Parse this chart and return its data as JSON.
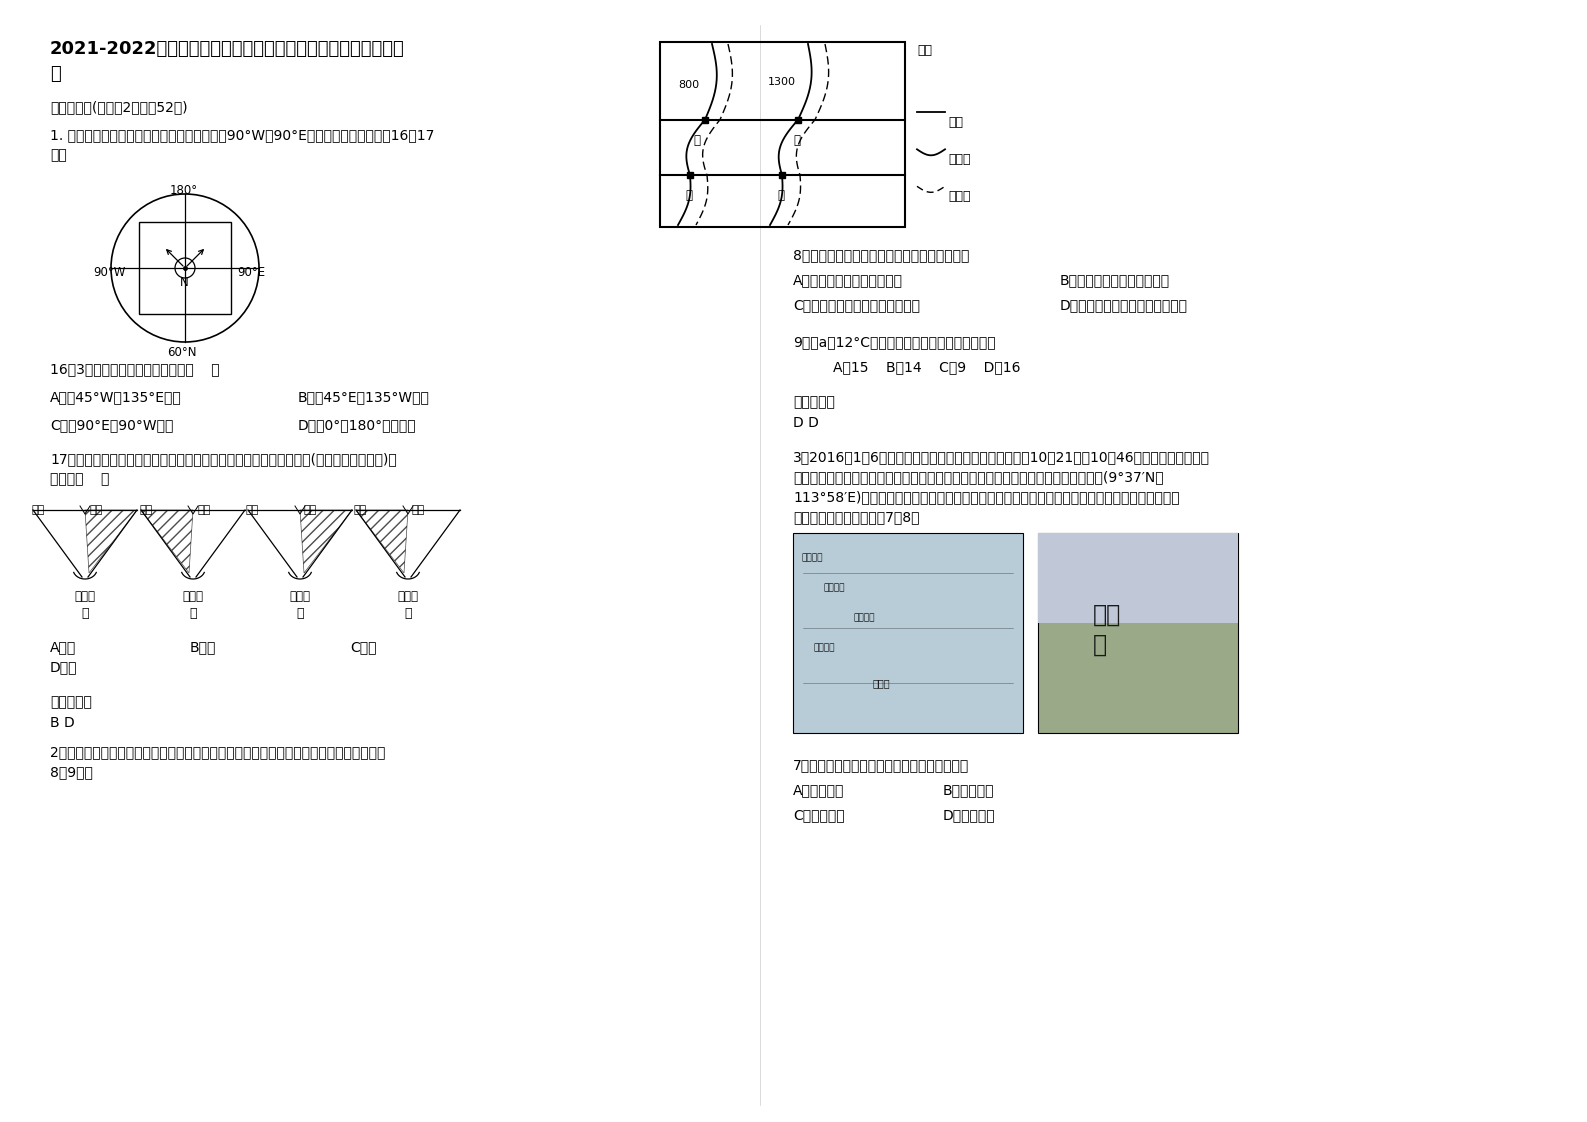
{
  "title_line1": "2021-2022学年湖南省岳阳市农大中学高三地理模拟试题含解析",
  "section1": "一、选择题(每小题2分，共52分)",
  "q1_line1": "1. 假定在北极点放置一个傅科摆，初始时摆沿90°W和90°E线摆动。据下图，回答16～17",
  "q1_line2": "题。",
  "q16_text": "16．3小时以后此摆的摆动方向是（    ）",
  "q16_A": "A．沿45°W～135°E摆动",
  "q16_B": "B．沿45°E～135°W摆动",
  "q16_C": "C．沿90°E～90°W摆动",
  "q16_D": "D．沿0°～180°经线摆动",
  "q17_line1": "17．下图是傅科摆所证明的地理现象，造成平直河道两岸冲刷与堆积(阴影部分为堆积物)的",
  "q17_line2": "情况是（    ）",
  "q17_A": "A．甲",
  "q17_B": "B．乙",
  "q17_C": "C．丙",
  "q17_D": "D．丁",
  "ans1_label": "参考答案：",
  "ans1_val": "B D",
  "q2_line1": "2．由于光照时间长短不同，会出现明显的温度差异。读某中纬度内陆地区等值线图，回答",
  "q2_line2": "8～9题。",
  "q8_text": "8．关于甲、乙、丙、丁四地的叙述不可能的是",
  "q8_A": "A．甲、乙位于北半球的阳坡",
  "q8_B": "B．丙、丁位于南半球的阳坡",
  "q8_C": "C．甲地较丙地纬度低，气温较高",
  "q8_D": "D．乙地较丁地海拔低，气温较高",
  "q9_text": "9．若a为12°C等温线，则乙地气温的数值可能是",
  "q9_opts": "A．15    B．14    C．9    D．16",
  "ans2_label": "参考答案：",
  "ans2_val": "D D",
  "q3_line1": "3．2016年1月6日，中国政府征用的两架民航客机分别于10时21分、10时46分平稳降落南沙永暑",
  "q3_line2": "礁新建机场并于当日下午返回海口，试飞成功。永暑礁新建机场位于我国南沙永暑礁(9°37′N，",
  "q3_line3": "113°58′E)上，属热带海洋性季风气候，是我国目前最南端的一座机场。读永暑礁位置图与主权碑",
  "q3_line4": "图，运用所学知识，完成7～8题",
  "q7_text": "7．当飞机返回时，永暑礁上主权碑影子朝向为",
  "q7_A": "A．西北方向",
  "q7_B": "B．西南方向",
  "q7_C": "C．东南方向",
  "q7_D": "D．东北方向",
  "legend_title": "图例",
  "leg_line": "纬线",
  "leg_contour": "等高线",
  "leg_isotherm": "等温线",
  "river_labels": [
    "右岸",
    "左岸",
    "左岸",
    "右岸",
    "左岸",
    "右岸",
    "右岸",
    "左岸"
  ],
  "river_hemi": [
    "南半球",
    "北半球",
    "南半球",
    "北半球"
  ],
  "river_names": [
    "甲",
    "乙",
    "丙",
    "丁"
  ],
  "map_labels": [
    "800",
    "1300"
  ],
  "map_points": [
    "乙",
    "甲",
    "丁",
    "丙"
  ],
  "polar_labels": [
    "180°",
    "90°W",
    "90°E",
    "60°N",
    "N"
  ],
  "bg_color": "#ffffff"
}
